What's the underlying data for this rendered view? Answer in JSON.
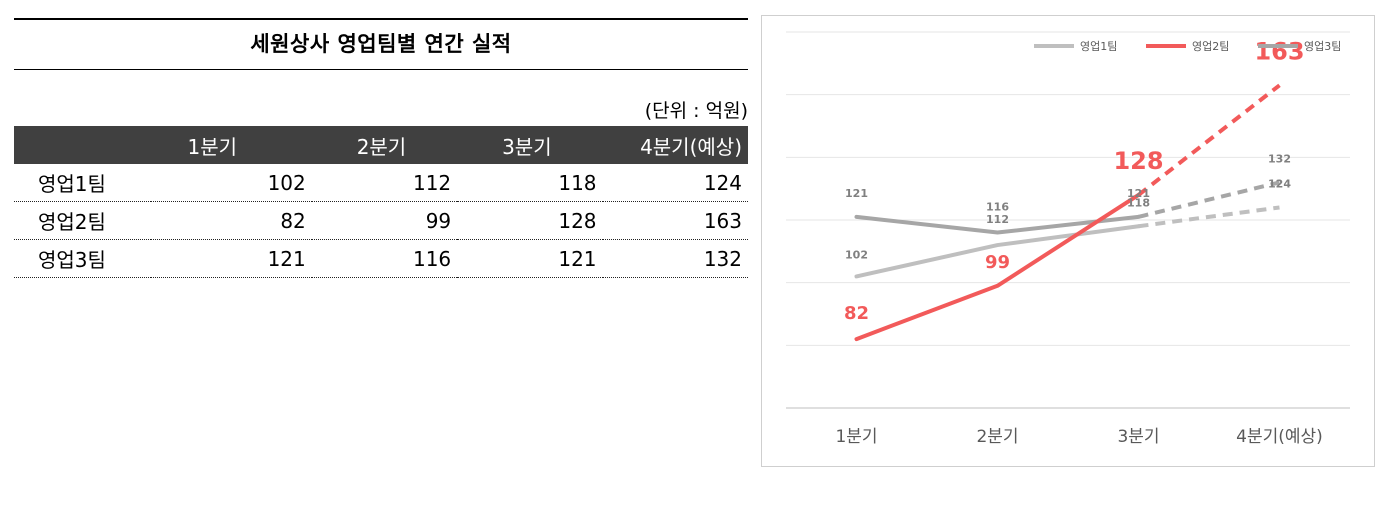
{
  "table": {
    "title": "세원상사 영업팀별 연간 실적",
    "unit": "(단위 : 억원)",
    "headers": [
      "",
      "1분기",
      "2분기",
      "3분기",
      "4분기(예상)"
    ],
    "rows": [
      {
        "name": "영업1팀",
        "values": [
          "102",
          "112",
          "118",
          "124"
        ]
      },
      {
        "name": "영업2팀",
        "values": [
          "82",
          "99",
          "128",
          "163"
        ]
      },
      {
        "name": "영업3팀",
        "values": [
          "121",
          "116",
          "121",
          "132"
        ]
      }
    ]
  },
  "chart_data": {
    "type": "line",
    "categories": [
      "1분기",
      "2분기",
      "3분기",
      "4분기(예상)"
    ],
    "series": [
      {
        "name": "영업1팀",
        "values": [
          102,
          112,
          118,
          124
        ],
        "color": "#bfbfbf"
      },
      {
        "name": "영업2팀",
        "values": [
          82,
          99,
          128,
          163
        ],
        "color": "#f25a5a"
      },
      {
        "name": "영업3팀",
        "values": [
          121,
          116,
          121,
          132
        ],
        "color": "#a6a6a6"
      }
    ],
    "forecast_from_index": 2,
    "ylim": [
      60,
      180
    ],
    "grid": true,
    "legend": "top-right",
    "xlabel": "",
    "ylabel": ""
  }
}
